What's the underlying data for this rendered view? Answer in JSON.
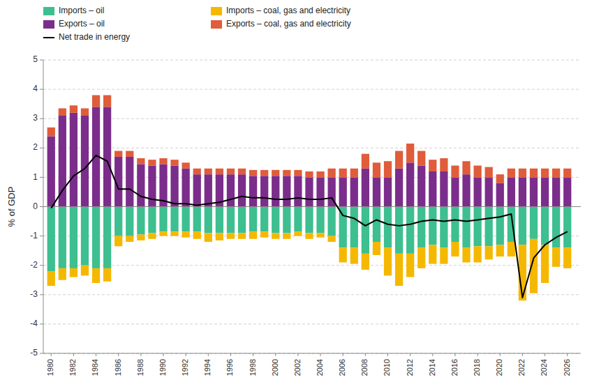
{
  "chart_data": {
    "type": "bar",
    "stacked": true,
    "y_label": "% of GDP",
    "x": [
      1980,
      1981,
      1982,
      1983,
      1984,
      1985,
      1986,
      1987,
      1988,
      1989,
      1990,
      1991,
      1992,
      1993,
      1994,
      1995,
      1996,
      1997,
      1998,
      1999,
      2000,
      2001,
      2002,
      2003,
      2004,
      2005,
      2006,
      2007,
      2008,
      2009,
      2010,
      2011,
      2012,
      2013,
      2014,
      2015,
      2016,
      2017,
      2018,
      2019,
      2020,
      2021,
      2022,
      2023,
      2024,
      2025,
      2026
    ],
    "xlim": [
      1979.3,
      2027.2
    ],
    "xticks": [
      1980,
      1982,
      1984,
      1986,
      1988,
      1990,
      1992,
      1994,
      1996,
      1998,
      2000,
      2002,
      2004,
      2006,
      2008,
      2010,
      2012,
      2014,
      2016,
      2018,
      2020,
      2022,
      2024,
      2026
    ],
    "ylim": [
      -5,
      5
    ],
    "yticks": [
      -5,
      -4,
      -3,
      -2,
      -1,
      0,
      1,
      2,
      3,
      4,
      5
    ],
    "grid": true,
    "legend": "upper left",
    "series": [
      {
        "name": "Imports – oil",
        "color": "#3dbf8f",
        "values": [
          -2.2,
          -2.1,
          -2.1,
          -2.0,
          -2.1,
          -2.1,
          -1.0,
          -1.0,
          -0.95,
          -0.9,
          -0.85,
          -0.85,
          -0.85,
          -0.85,
          -0.9,
          -0.9,
          -0.9,
          -0.9,
          -0.85,
          -0.85,
          -0.9,
          -0.9,
          -0.85,
          -0.9,
          -0.9,
          -1.0,
          -1.4,
          -1.4,
          -1.6,
          -1.2,
          -1.4,
          -1.6,
          -1.6,
          -1.4,
          -1.3,
          -1.4,
          -1.2,
          -1.4,
          -1.35,
          -1.35,
          -1.3,
          -1.2,
          -1.3,
          -1.1,
          -1.3,
          -1.4,
          -1.4
        ]
      },
      {
        "name": "Imports – coal, gas and electricity",
        "color": "#f5b800",
        "values": [
          -0.5,
          -0.4,
          -0.3,
          -0.35,
          -0.5,
          -0.45,
          -0.35,
          -0.2,
          -0.2,
          -0.2,
          -0.15,
          -0.15,
          -0.2,
          -0.25,
          -0.3,
          -0.25,
          -0.2,
          -0.2,
          -0.25,
          -0.2,
          -0.2,
          -0.2,
          -0.15,
          -0.2,
          -0.15,
          -0.2,
          -0.5,
          -0.55,
          -0.55,
          -0.45,
          -0.95,
          -1.1,
          -0.8,
          -0.7,
          -0.65,
          -0.55,
          -0.5,
          -0.5,
          -0.55,
          -0.45,
          -0.4,
          -0.5,
          -1.9,
          -1.85,
          -1.3,
          -0.65,
          -0.7
        ]
      },
      {
        "name": "Exports – oil",
        "color": "#7b2d8b",
        "values": [
          2.4,
          3.1,
          3.2,
          3.1,
          3.4,
          3.4,
          1.7,
          1.7,
          1.45,
          1.4,
          1.45,
          1.4,
          1.3,
          1.1,
          1.1,
          1.1,
          1.1,
          1.1,
          1.05,
          1.05,
          1.05,
          1.05,
          1.05,
          1.0,
          1.0,
          1.0,
          1.0,
          1.0,
          1.3,
          1.0,
          1.0,
          1.3,
          1.5,
          1.4,
          1.2,
          1.2,
          1.0,
          1.1,
          1.0,
          1.0,
          0.8,
          1.0,
          1.0,
          1.0,
          1.0,
          1.0,
          1.0
        ]
      },
      {
        "name": "Exports – coal, gas and electricity",
        "color": "#e05c3a",
        "values": [
          0.3,
          0.25,
          0.25,
          0.25,
          0.4,
          0.4,
          0.2,
          0.2,
          0.2,
          0.2,
          0.2,
          0.2,
          0.2,
          0.2,
          0.2,
          0.2,
          0.2,
          0.2,
          0.2,
          0.2,
          0.2,
          0.2,
          0.2,
          0.2,
          0.2,
          0.3,
          0.3,
          0.3,
          0.5,
          0.5,
          0.55,
          0.6,
          0.65,
          0.5,
          0.4,
          0.45,
          0.4,
          0.45,
          0.4,
          0.35,
          0.3,
          0.3,
          0.3,
          0.3,
          0.3,
          0.3,
          0.3
        ]
      },
      {
        "name": "Net trade in energy",
        "color": "#000000",
        "type": "line",
        "values": [
          -0.05,
          0.55,
          1.05,
          1.3,
          1.75,
          1.55,
          0.6,
          0.6,
          0.35,
          0.25,
          0.2,
          0.1,
          0.1,
          0.05,
          0.1,
          0.15,
          0.25,
          0.35,
          0.3,
          0.3,
          0.25,
          0.25,
          0.3,
          0.25,
          0.25,
          0.3,
          -0.3,
          -0.4,
          -0.65,
          -0.45,
          -0.6,
          -0.65,
          -0.6,
          -0.5,
          -0.45,
          -0.5,
          -0.45,
          -0.5,
          -0.45,
          -0.4,
          -0.35,
          -0.25,
          -3.1,
          -1.75,
          -1.3,
          -1.05,
          -0.85
        ]
      }
    ]
  }
}
